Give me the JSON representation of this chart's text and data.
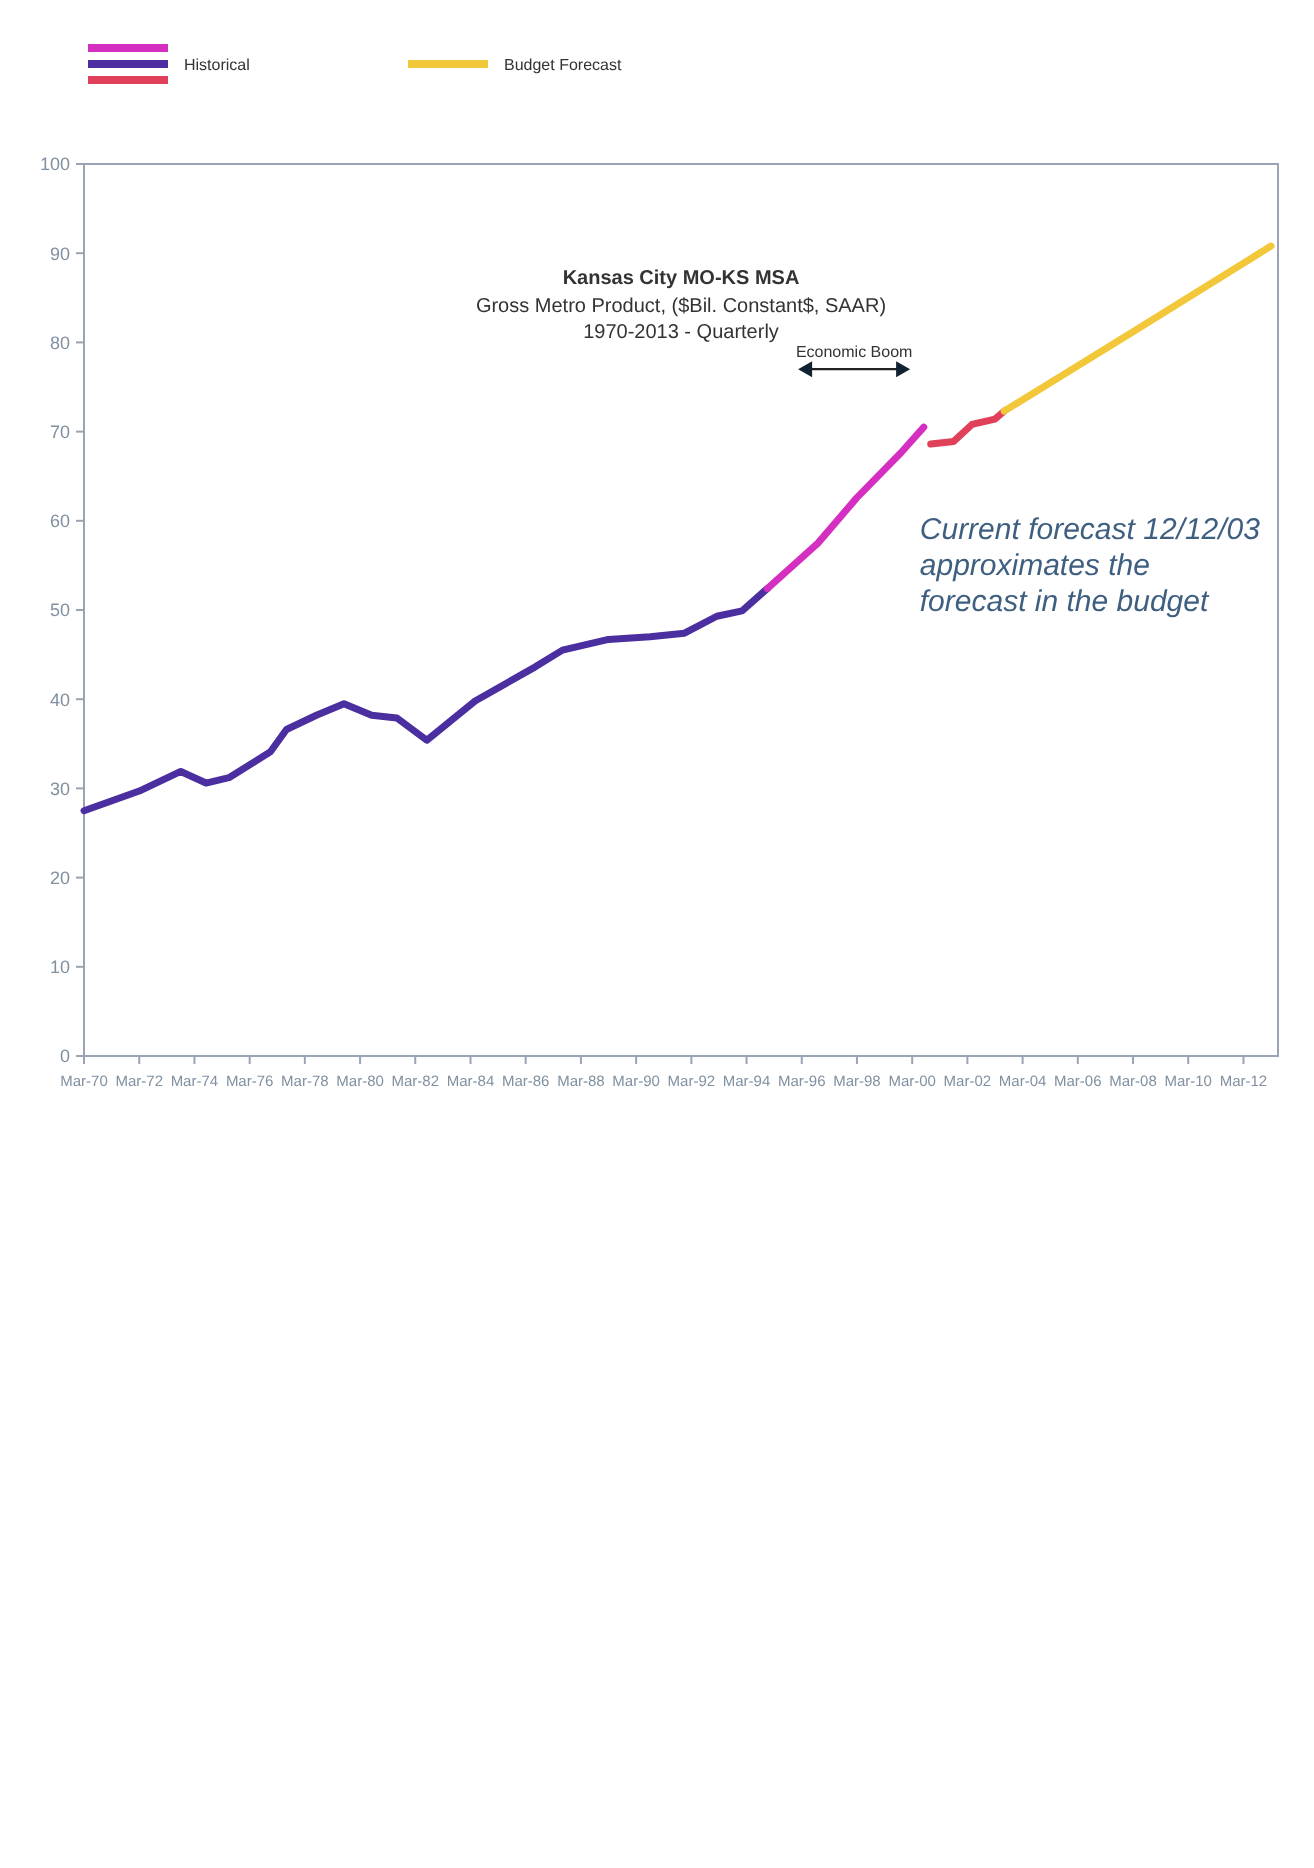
{
  "chart_data": {
    "type": "line",
    "title": "Kansas City MO-KS MSA",
    "subtitle": "Gross Metro Product, ($Bil. Constant$, SAAR)\n1970-2013 - Quarterly",
    "xlim": [
      "1970-03",
      "2013-06"
    ],
    "xticks": [
      {
        "value": "1970-03",
        "label": "Mar-70"
      },
      {
        "value": "1972-03",
        "label": "Mar-72"
      },
      {
        "value": "1974-03",
        "label": "Mar-74"
      },
      {
        "value": "1976-03",
        "label": "Mar-76"
      },
      {
        "value": "1978-03",
        "label": "Mar-78"
      },
      {
        "value": "1980-03",
        "label": "Mar-80"
      },
      {
        "value": "1982-03",
        "label": "Mar-82"
      },
      {
        "value": "1984-03",
        "label": "Mar-84"
      },
      {
        "value": "1986-03",
        "label": "Mar-86"
      },
      {
        "value": "1988-03",
        "label": "Mar-88"
      },
      {
        "value": "1990-03",
        "label": "Mar-90"
      },
      {
        "value": "1992-03",
        "label": "Mar-92"
      },
      {
        "value": "1994-03",
        "label": "Mar-94"
      },
      {
        "value": "1996-03",
        "label": "Mar-96"
      },
      {
        "value": "1998-03",
        "label": "Mar-98"
      },
      {
        "value": "2000-03",
        "label": "Mar-00"
      },
      {
        "value": "2002-03",
        "label": "Mar-02"
      },
      {
        "value": "2004-03",
        "label": "Mar-04"
      },
      {
        "value": "2006-03",
        "label": "Mar-06"
      },
      {
        "value": "2008-03",
        "label": "Mar-08"
      },
      {
        "value": "2010-03",
        "label": "Mar-10"
      },
      {
        "value": "2012-03",
        "label": "Mar-12"
      }
    ],
    "ylim": [
      0,
      100
    ],
    "yticks": [
      0,
      10,
      20,
      30,
      40,
      50,
      60,
      70,
      80,
      90,
      100
    ],
    "legend": "top left",
    "series": [
      {
        "name": "Historical",
        "color": "#4b2fa0",
        "x": [
          "1970-03",
          "1972-03",
          "1973-09",
          "1974-08",
          "1975-06",
          "1976-12",
          "1977-07",
          "1978-08",
          "1979-08",
          "1980-08",
          "1981-07",
          "1982-08",
          "1984-05",
          "1986-07",
          "1987-07",
          "1989-03",
          "1990-09",
          "1991-12",
          "1993-02",
          "1994-01",
          "1994-12"
        ],
        "values": [
          27.5,
          29.7,
          31.9,
          30.6,
          31.2,
          34.1,
          36.6,
          38.2,
          39.5,
          38.2,
          37.9,
          35.4,
          39.8,
          43.6,
          45.5,
          46.7,
          47.0,
          47.4,
          49.3,
          49.9,
          52.4
        ]
      },
      {
        "color": "#d42fc0",
        "x": [
          "1994-12",
          "1996-10",
          "1998-03",
          "1999-10",
          "2000-08"
        ],
        "values": [
          52.4,
          57.5,
          62.6,
          67.6,
          70.5
        ]
      },
      {
        "color": "#e0405a",
        "x": [
          "2000-11",
          "2001-09",
          "2002-05",
          "2003-03",
          "2003-07"
        ],
        "values": [
          68.6,
          68.9,
          70.8,
          71.4,
          72.3
        ]
      },
      {
        "name": "Budget Forecast",
        "color": "#f2c83a",
        "x": [
          "2003-07",
          "2008-03",
          "2013-03"
        ],
        "values": [
          72.3,
          81.2,
          90.8
        ]
      }
    ],
    "annotations": [
      "Economic Boom",
      "Current forecast 12/12/03\napproximates the\nforecast in the budget"
    ]
  }
}
